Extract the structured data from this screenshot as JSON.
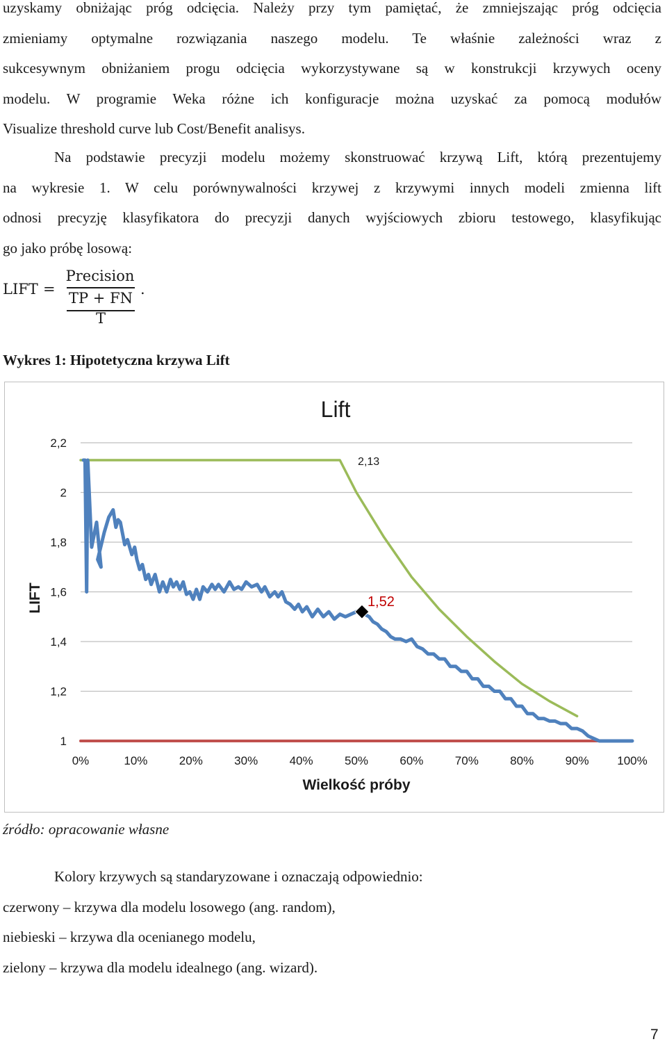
{
  "paragraph1": {
    "lines": [
      "uzyskamy obniżając próg odcięcia. Należy przy tym pamiętać, że zmniejszając próg odcięcia",
      "zmieniamy optymalne rozwiązania naszego modelu. Te właśnie zależności wraz z",
      "sukcesywnym obniżaniem progu odcięcia wykorzystywane są w konstrukcji krzywych oceny",
      "modelu. W programie Weka różne ich konfiguracje można uzyskać za pomocą modułów",
      "Visualize threshold curve lub Cost/Benefit analisys."
    ]
  },
  "paragraph2": {
    "lines": [
      "Na podstawie precyzji modelu możemy skonstruować krzywą Lift, którą prezentujemy",
      "na wykresie 1. W celu porównywalności krzywej z krzywymi innych modeli zmienna lift",
      "odnosi precyzję klasyfikatora do precyzji danych wyjściowych zbioru testowego, klasyfikując",
      "go jako próbę losową:"
    ]
  },
  "formula": {
    "lhs": "LIFT",
    "eq": "=",
    "numerator": "Precision",
    "denominator_top": "TP + FN",
    "denominator_bottom": "T",
    "end": "."
  },
  "chart_caption": "Wykres 1: Hipotetyczna krzywa Lift",
  "chart_data": {
    "type": "line",
    "title": "Lift",
    "xlabel": "Wielkość próby",
    "ylabel": "LIFT",
    "x_ticks": [
      "0%",
      "10%",
      "20%",
      "30%",
      "40%",
      "50%",
      "60%",
      "70%",
      "80%",
      "90%",
      "100%"
    ],
    "y_ticks": [
      "1",
      "1,2",
      "1,4",
      "1,6",
      "1,8",
      "2",
      "2,2"
    ],
    "xlim": [
      0,
      100
    ],
    "ylim": [
      1,
      2.2
    ],
    "grid": "horizontal",
    "colors": {
      "random": "#c0504d",
      "model": "#4f81bd",
      "ideal": "#9bbb59",
      "marker": "#000000",
      "highlight_label": "#c00000"
    },
    "series": [
      {
        "key": "random",
        "x": [
          0,
          100
        ],
        "y": [
          1,
          1
        ]
      },
      {
        "key": "ideal",
        "x": [
          0,
          47,
          50,
          55,
          60,
          65,
          70,
          75,
          80,
          85,
          90
        ],
        "y": [
          2.13,
          2.13,
          2.0,
          1.82,
          1.66,
          1.53,
          1.42,
          1.32,
          1.23,
          1.16,
          1.1
        ]
      },
      {
        "key": "model",
        "x": [
          0.5,
          0.8,
          1.1,
          1.3,
          2.0,
          2.9,
          3.7,
          3.1,
          4.3,
          5.1,
          5.9,
          6.4,
          6.8,
          7.2,
          8.0,
          8.5,
          9.3,
          9.8,
          10.2,
          10.7,
          11.2,
          11.8,
          12.3,
          12.8,
          13.5,
          14.3,
          14.9,
          15.6,
          16.3,
          16.8,
          17.4,
          18.0,
          18.6,
          19.2,
          19.8,
          20.4,
          21.0,
          21.6,
          22.2,
          23.0,
          23.8,
          24.4,
          25.0,
          26.0,
          27.0,
          27.8,
          28.6,
          29.2,
          30.0,
          31.0,
          32.0,
          32.8,
          33.4,
          34.3,
          35.2,
          35.8,
          36.5,
          37.2,
          38.0,
          38.8,
          39.5,
          40.2,
          41.0,
          42.0,
          43.0,
          44.0,
          45.0,
          46.0,
          47.0,
          48.0,
          49.0,
          50.0,
          50.7,
          51.5,
          52.3,
          53.0,
          53.8,
          54.6,
          55.4,
          56.2,
          57.0,
          58.0,
          59.0,
          60.0,
          61.0,
          62.0,
          63.0,
          64.0,
          65.0,
          66.0,
          67.0,
          68.0,
          69.0,
          70.0,
          71.0,
          72.0,
          73.0,
          74.0,
          75.0,
          76.0,
          77.0,
          78.0,
          79.0,
          80.0,
          81.0,
          82.0,
          83.0,
          84.0,
          85.0,
          86.0,
          87.0,
          88.0,
          89.0,
          90.0,
          91.0,
          92.0,
          93.0,
          94.0,
          95.0,
          96.0,
          97.0,
          98.0,
          99.0,
          100.0
        ],
        "y": [
          2.13,
          2.13,
          1.6,
          2.13,
          1.78,
          1.88,
          1.7,
          1.73,
          1.84,
          1.9,
          1.93,
          1.86,
          1.89,
          1.88,
          1.79,
          1.81,
          1.75,
          1.78,
          1.73,
          1.69,
          1.71,
          1.65,
          1.67,
          1.63,
          1.67,
          1.6,
          1.64,
          1.6,
          1.65,
          1.62,
          1.64,
          1.61,
          1.64,
          1.59,
          1.6,
          1.57,
          1.61,
          1.57,
          1.62,
          1.6,
          1.63,
          1.61,
          1.63,
          1.6,
          1.64,
          1.61,
          1.62,
          1.61,
          1.64,
          1.62,
          1.63,
          1.6,
          1.62,
          1.58,
          1.6,
          1.58,
          1.6,
          1.56,
          1.55,
          1.53,
          1.55,
          1.52,
          1.54,
          1.5,
          1.53,
          1.5,
          1.52,
          1.49,
          1.51,
          1.5,
          1.51,
          1.52,
          1.53,
          1.51,
          1.5,
          1.48,
          1.47,
          1.45,
          1.44,
          1.42,
          1.41,
          1.41,
          1.4,
          1.41,
          1.38,
          1.37,
          1.35,
          1.35,
          1.33,
          1.33,
          1.3,
          1.3,
          1.28,
          1.28,
          1.25,
          1.25,
          1.22,
          1.22,
          1.2,
          1.2,
          1.17,
          1.17,
          1.14,
          1.14,
          1.11,
          1.11,
          1.09,
          1.09,
          1.08,
          1.08,
          1.07,
          1.07,
          1.05,
          1.05,
          1.04,
          1.02,
          1.01,
          1.0,
          1.0,
          1.0,
          1.0,
          1.0,
          1.0,
          1.0
        ]
      }
    ],
    "annotations": [
      {
        "text": "2,13",
        "x": 49,
        "y": 2.13
      },
      {
        "text": "1,52",
        "x": 51,
        "y": 1.52,
        "marker": "diamond"
      }
    ]
  },
  "source": "źródło: opracowanie własne",
  "colors_paragraph": {
    "lines": [
      "Kolory krzywych są standaryzowane i oznaczają odpowiednio:",
      "czerwony – krzywa dla modelu losowego (ang. random),",
      "niebieski – krzywa dla ocenianego modelu,",
      "zielony – krzywa dla modelu idealnego (ang. wizard)."
    ]
  },
  "page_number": "7"
}
